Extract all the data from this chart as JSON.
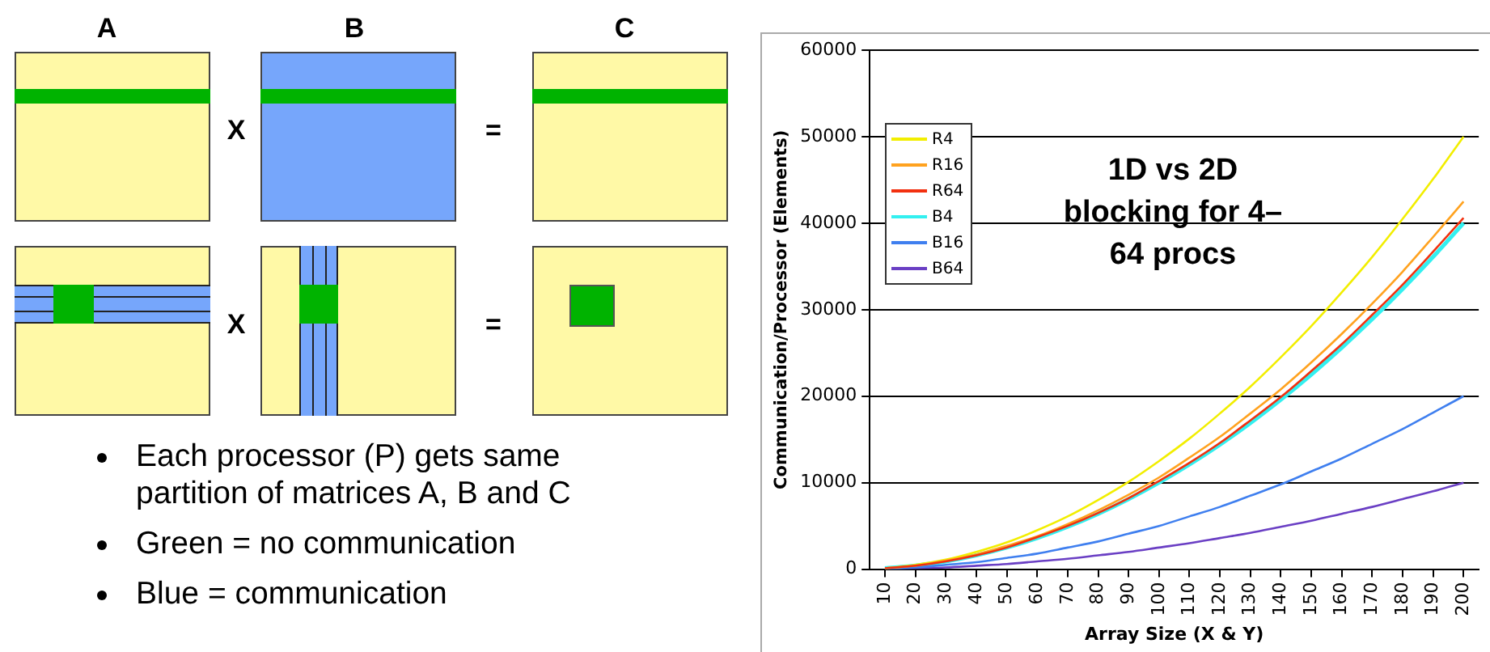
{
  "chart_data": {
    "type": "line",
    "title": "1D vs 2D blocking for 4–64 procs",
    "xlabel": "Array Size (X & Y)",
    "ylabel": "Communication/Processor (Elements)",
    "annotations": [
      "A",
      "B",
      "C",
      "X",
      "X",
      "=",
      "=",
      "Each processor (P) gets same partition of matrices A, B and C",
      "Green = no communication",
      "Blue = communication"
    ],
    "categories": [
      "10",
      "20",
      "30",
      "40",
      "50",
      "60",
      "70",
      "80",
      "90",
      "100",
      "110",
      "120",
      "130",
      "140",
      "150",
      "160",
      "170",
      "180",
      "190",
      "200"
    ],
    "series": [
      {
        "name": "R4",
        "color": "#f2ee00",
        "values": [
          100,
          500,
          1100,
          2000,
          3100,
          4500,
          6100,
          8000,
          10100,
          12500,
          15100,
          18000,
          21100,
          24500,
          28100,
          32000,
          36100,
          40500,
          45100,
          50000
        ]
      },
      {
        "name": "R16",
        "color": "#ffa21f",
        "values": [
          100,
          400,
          1000,
          1700,
          2700,
          3800,
          5200,
          6800,
          8600,
          10600,
          12900,
          15300,
          18000,
          20800,
          23900,
          27200,
          30700,
          34400,
          38400,
          42500
        ]
      },
      {
        "name": "R64",
        "color": "#f2300f",
        "values": [
          100,
          400,
          900,
          1600,
          2500,
          3700,
          5000,
          6500,
          8200,
          10200,
          12300,
          14600,
          17200,
          19900,
          22900,
          26000,
          29400,
          32900,
          36700,
          40600
        ]
      },
      {
        "name": "B4",
        "color": "#33f0f0",
        "values": [
          100,
          400,
          900,
          1600,
          2500,
          3600,
          4900,
          6400,
          8100,
          10000,
          12100,
          14400,
          16900,
          19600,
          22500,
          25600,
          28900,
          32400,
          36100,
          40000
        ]
      },
      {
        "name": "B16",
        "color": "#3f7fef",
        "values": [
          0,
          200,
          500,
          800,
          1300,
          1800,
          2500,
          3200,
          4100,
          5000,
          6100,
          7200,
          8500,
          9800,
          11300,
          12800,
          14500,
          16200,
          18100,
          20000
        ]
      },
      {
        "name": "B64",
        "color": "#6a3fc4",
        "values": [
          0,
          100,
          200,
          400,
          600,
          900,
          1200,
          1600,
          2000,
          2500,
          3000,
          3600,
          4200,
          4900,
          5600,
          6400,
          7200,
          8100,
          9000,
          10000
        ]
      }
    ],
    "ylim": [
      0,
      60000
    ],
    "yticks": [
      0,
      10000,
      20000,
      30000,
      40000,
      50000,
      60000
    ],
    "grid": "y",
    "legend": "top left",
    "marker": "none",
    "line_style": "solid"
  }
}
